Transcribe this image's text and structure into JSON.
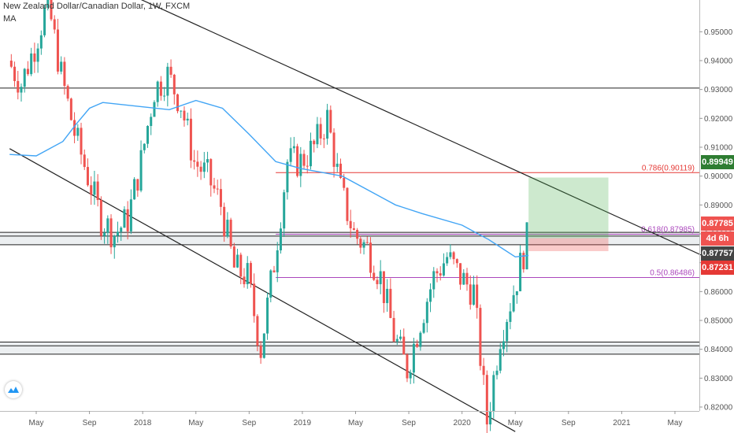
{
  "header": {
    "title": "New Zealand Dollar/Canadian Dollar, 1W, FXCM",
    "indicator": "MA"
  },
  "price_tags": [
    {
      "value": "0.89949",
      "color": "#2e7d32"
    },
    {
      "value": "0.87785",
      "color": "#ef5350"
    },
    {
      "value": "4d 6h",
      "color": "#ef5350"
    },
    {
      "value": "0.87757",
      "color": "#444444"
    },
    {
      "value": "0.87231",
      "color": "#e53935"
    }
  ],
  "fib_labels": {
    "fib786": "0.786(0.90119)",
    "fib618": "0.618(0.87985)",
    "fib5": "0.5(0.86486)"
  },
  "chart_data": {
    "type": "candlestick",
    "title": "New Zealand Dollar/Canadian Dollar, 1W, FXCM",
    "ylim": [
      0.811,
      0.961
    ],
    "y_ticks": [
      "0.95000",
      "0.94000",
      "0.93000",
      "0.92000",
      "0.91000",
      "0.90000",
      "0.89000",
      "0.88000",
      "0.87000",
      "0.86000",
      "0.85000",
      "0.84000",
      "0.83000",
      "0.82000"
    ],
    "x_ticks": [
      "May",
      "Sep",
      "2018",
      "May",
      "Sep",
      "2019",
      "May",
      "Sep",
      "2020",
      "May",
      "Sep",
      "2021",
      "May"
    ],
    "x_range": [
      "2017-03",
      "2021-08"
    ],
    "horizontal_levels": [
      0.9305,
      0.8805,
      0.8792,
      0.8762,
      0.8425,
      0.8412,
      0.8383
    ],
    "fib_levels": [
      {
        "label": "0.786(0.90119)",
        "value": 0.90119,
        "color": "#e53935"
      },
      {
        "label": "0.618(0.87985)",
        "value": 0.87985,
        "color": "#ab47bc"
      },
      {
        "label": "0.5(0.86486)",
        "value": 0.86486,
        "color": "#ab47bc"
      }
    ],
    "trendlines": [
      {
        "from": [
          "2017-12",
          0.963
        ],
        "to": [
          "2021-08",
          0.8705
        ]
      },
      {
        "from": [
          "2017-03",
          0.9095
        ],
        "to": [
          "2020-05",
          0.8115
        ]
      }
    ],
    "position_box": {
      "from": "2020-06",
      "to": "2020-12",
      "entry": 0.8785,
      "target": 0.8995,
      "stop": 0.874
    },
    "ma_line": [
      {
        "t": "2017-03",
        "v": 0.9075
      },
      {
        "t": "2017-05",
        "v": 0.907
      },
      {
        "t": "2017-07",
        "v": 0.912
      },
      {
        "t": "2017-08",
        "v": 0.918
      },
      {
        "t": "2017-09",
        "v": 0.9235
      },
      {
        "t": "2017-10",
        "v": 0.9255
      },
      {
        "t": "2018-01",
        "v": 0.924
      },
      {
        "t": "2018-03",
        "v": 0.923
      },
      {
        "t": "2018-05",
        "v": 0.9262
      },
      {
        "t": "2018-07",
        "v": 0.9235
      },
      {
        "t": "2018-09",
        "v": 0.9145
      },
      {
        "t": "2018-11",
        "v": 0.905
      },
      {
        "t": "2019-01",
        "v": 0.9025
      },
      {
        "t": "2019-04",
        "v": 0.9
      },
      {
        "t": "2019-06",
        "v": 0.895
      },
      {
        "t": "2019-08",
        "v": 0.89
      },
      {
        "t": "2019-10",
        "v": 0.887
      },
      {
        "t": "2020-01",
        "v": 0.883
      },
      {
        "t": "2020-03",
        "v": 0.878
      },
      {
        "t": "2020-05",
        "v": 0.872
      },
      {
        "t": "2020-06",
        "v": 0.8725
      }
    ],
    "close_path": [
      {
        "t": "2017-03",
        "v": 0.94
      },
      {
        "t": "2017-04",
        "v": 0.932
      },
      {
        "t": "2017-05",
        "v": 0.945
      },
      {
        "t": "2017-06",
        "v": 0.96
      },
      {
        "t": "2017-07",
        "v": 0.935
      },
      {
        "t": "2017-08",
        "v": 0.915
      },
      {
        "t": "2017-09",
        "v": 0.9
      },
      {
        "t": "2017-10",
        "v": 0.885
      },
      {
        "t": "2017-11",
        "v": 0.88
      },
      {
        "t": "2017-12",
        "v": 0.885
      },
      {
        "t": "2018-01",
        "v": 0.905
      },
      {
        "t": "2018-02",
        "v": 0.93
      },
      {
        "t": "2018-03",
        "v": 0.935
      },
      {
        "t": "2018-04",
        "v": 0.925
      },
      {
        "t": "2018-05",
        "v": 0.905
      },
      {
        "t": "2018-06",
        "v": 0.9
      },
      {
        "t": "2018-07",
        "v": 0.89
      },
      {
        "t": "2018-08",
        "v": 0.868
      },
      {
        "t": "2018-09",
        "v": 0.865
      },
      {
        "t": "2018-10",
        "v": 0.84
      },
      {
        "t": "2018-11",
        "v": 0.87
      },
      {
        "t": "2018-12",
        "v": 0.905
      },
      {
        "t": "2019-01",
        "v": 0.905
      },
      {
        "t": "2019-02",
        "v": 0.91
      },
      {
        "t": "2019-03",
        "v": 0.92
      },
      {
        "t": "2019-04",
        "v": 0.895
      },
      {
        "t": "2019-05",
        "v": 0.88
      },
      {
        "t": "2019-06",
        "v": 0.875
      },
      {
        "t": "2019-07",
        "v": 0.865
      },
      {
        "t": "2019-08",
        "v": 0.845
      },
      {
        "t": "2019-09",
        "v": 0.833
      },
      {
        "t": "2019-10",
        "v": 0.85
      },
      {
        "t": "2019-11",
        "v": 0.865
      },
      {
        "t": "2019-12",
        "v": 0.872
      },
      {
        "t": "2020-01",
        "v": 0.865
      },
      {
        "t": "2020-02",
        "v": 0.86
      },
      {
        "t": "2020-03",
        "v": 0.815
      },
      {
        "t": "2020-04",
        "v": 0.845
      },
      {
        "t": "2020-05",
        "v": 0.86
      },
      {
        "t": "2020-06",
        "v": 0.878
      }
    ]
  }
}
